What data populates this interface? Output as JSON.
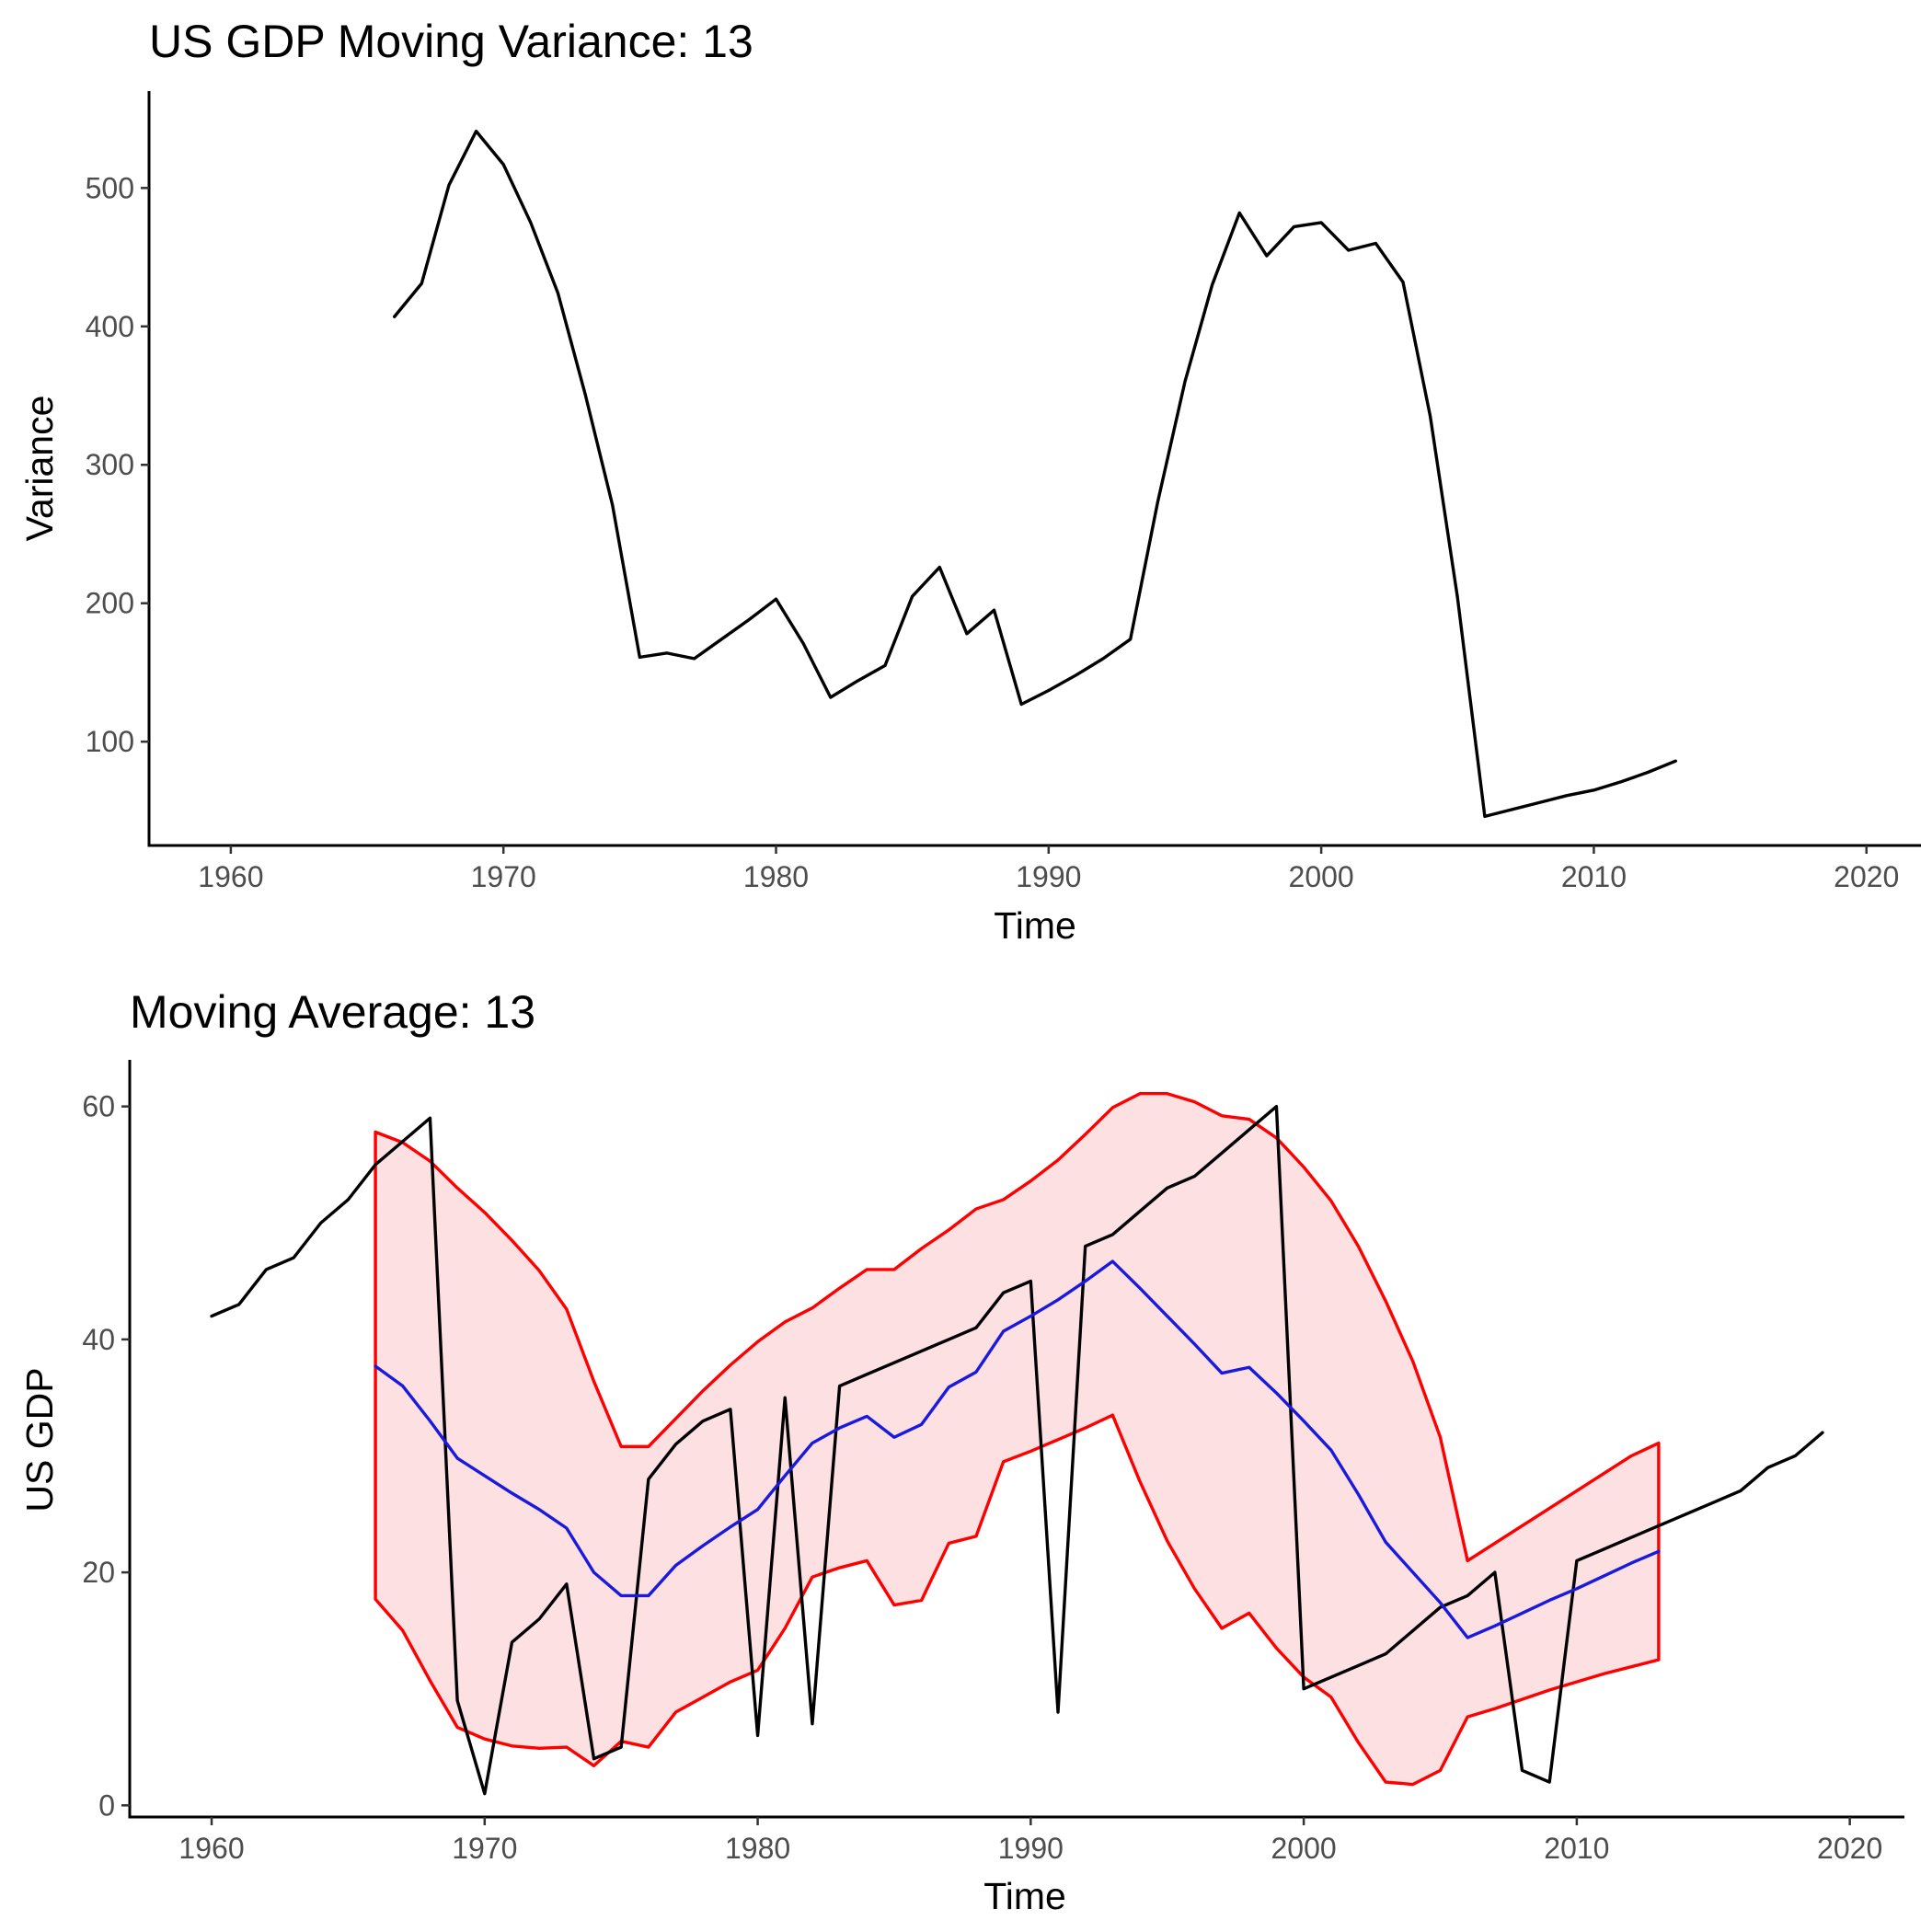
{
  "chart_data": [
    {
      "type": "line",
      "title": "US GDP Moving Variance: 13",
      "xlabel": "Time",
      "ylabel": "Variance",
      "xlim": [
        1957,
        2022
      ],
      "ylim": [
        25,
        570
      ],
      "xticks": [
        1960,
        1970,
        1980,
        1990,
        2000,
        2010,
        2020
      ],
      "yticks": [
        100,
        200,
        300,
        400,
        500
      ],
      "grid": false,
      "series": [
        {
          "color": "#000000",
          "x": [
            1966,
            1967,
            1968,
            1969,
            1970,
            1971,
            1972,
            1973,
            1974,
            1975,
            1976,
            1977,
            1978,
            1979,
            1980,
            1981,
            1982,
            1983,
            1984,
            1985,
            1986,
            1987,
            1988,
            1989,
            1990,
            1991,
            1992,
            1993,
            1994,
            1995,
            1996,
            1997,
            1998,
            1999,
            2000,
            2001,
            2002,
            2003,
            2004,
            2005,
            2006,
            2007,
            2008,
            2009,
            2010,
            2011,
            2012,
            2013
          ],
          "y": [
            407,
            431,
            502,
            541,
            517,
            475,
            424,
            351,
            271,
            161,
            164,
            160,
            174,
            188,
            203,
            171,
            132,
            144,
            155,
            205,
            226,
            178,
            195,
            127,
            137,
            148,
            160,
            174,
            273,
            360,
            430,
            482,
            451,
            472,
            475,
            455,
            460,
            432,
            335,
            204,
            46,
            51,
            56,
            61,
            65,
            71,
            78,
            86
          ]
        }
      ]
    },
    {
      "type": "line",
      "title": "Moving Average: 13",
      "xlabel": "Time",
      "ylabel": "US GDP",
      "xlim": [
        1957,
        2022
      ],
      "ylim": [
        -1,
        64
      ],
      "xticks": [
        1960,
        1970,
        1980,
        1990,
        2000,
        2010,
        2020
      ],
      "yticks": [
        0,
        20,
        40,
        60
      ],
      "grid": false,
      "band": {
        "fill": "#fde0e2",
        "color": "#ff0000",
        "x": [
          1966,
          1967,
          1968,
          1969,
          1970,
          1971,
          1972,
          1973,
          1974,
          1975,
          1976,
          1977,
          1978,
          1979,
          1980,
          1981,
          1982,
          1983,
          1984,
          1985,
          1986,
          1987,
          1988,
          1989,
          1990,
          1991,
          1992,
          1993,
          1994,
          1995,
          1996,
          1997,
          1998,
          1999,
          2000,
          2001,
          2002,
          2003,
          2004,
          2005,
          2006,
          2007,
          2008,
          2009,
          2010,
          2011,
          2012,
          2013
        ],
        "upper": [
          57.8,
          56.9,
          55.3,
          53,
          50.9,
          48.5,
          45.9,
          42.6,
          36.4,
          30.8,
          30.8,
          33.2,
          35.6,
          37.8,
          39.8,
          41.5,
          42.7,
          44.4,
          46,
          46,
          47.8,
          49.4,
          51.2,
          52,
          53.6,
          55.4,
          57.6,
          59.9,
          61.1,
          61.1,
          60.4,
          59.2,
          58.9,
          57.3,
          54.8,
          51.9,
          48,
          43.3,
          38.1,
          31.6,
          21,
          22.5,
          24,
          25.5,
          27,
          28.5,
          30,
          31.1
        ],
        "lower": [
          17.7,
          15,
          10.7,
          6.7,
          5.7,
          5.1,
          4.9,
          5,
          3.4,
          5.5,
          5,
          8,
          9.3,
          10.6,
          11.6,
          15.2,
          19.6,
          20.4,
          21,
          17.2,
          17.6,
          22.5,
          23.1,
          29.5,
          30.4,
          31.4,
          32.4,
          33.5,
          27.8,
          22.7,
          18.6,
          15.2,
          16.5,
          13.5,
          11,
          9.3,
          5.4,
          2,
          1.8,
          3,
          7.6,
          8.3,
          9.1,
          9.9,
          10.6,
          11.3,
          11.9,
          12.5
        ]
      },
      "series": [
        {
          "color": "#000000",
          "x": [
            1960,
            1961,
            1962,
            1963,
            1964,
            1965,
            1966,
            1967,
            1968,
            1969,
            1970,
            1971,
            1972,
            1973,
            1974,
            1975,
            1976,
            1977,
            1978,
            1979,
            1980,
            1981,
            1982,
            1983,
            1984,
            1985,
            1986,
            1987,
            1988,
            1989,
            1990,
            1991,
            1992,
            1993,
            1994,
            1995,
            1996,
            1997,
            1998,
            1999,
            2000,
            2001,
            2002,
            2003,
            2004,
            2005,
            2006,
            2007,
            2008,
            2009,
            2010,
            2011,
            2012,
            2013,
            2014,
            2015,
            2016,
            2017,
            2018,
            2019
          ],
          "y": [
            42,
            43,
            46,
            47,
            50,
            52,
            55,
            57,
            59,
            9,
            1,
            14,
            16,
            19,
            4,
            5,
            28,
            31,
            33,
            34,
            6,
            35,
            7,
            36,
            37,
            38,
            39,
            40,
            41,
            44,
            45,
            8,
            48,
            49,
            51,
            53,
            54,
            56,
            58,
            60,
            10,
            11,
            12,
            13,
            15,
            17,
            18,
            20,
            3,
            2,
            21,
            22,
            23,
            24,
            25,
            26,
            27,
            29,
            30,
            32
          ]
        },
        {
          "color": "#1a1add",
          "x": [
            1966,
            1967,
            1968,
            1969,
            1970,
            1971,
            1972,
            1973,
            1974,
            1975,
            1976,
            1977,
            1978,
            1979,
            1980,
            1981,
            1982,
            1983,
            1984,
            1985,
            1986,
            1987,
            1988,
            1989,
            1990,
            1991,
            1992,
            1993,
            1994,
            1995,
            1996,
            1997,
            1998,
            1999,
            2000,
            2001,
            2002,
            2003,
            2004,
            2005,
            2006,
            2007,
            2008,
            2009,
            2010,
            2011,
            2012,
            2013
          ],
          "y": [
            37.7,
            36,
            33,
            29.8,
            28.3,
            26.8,
            25.4,
            23.8,
            20,
            18,
            18,
            20.6,
            22.3,
            23.9,
            25.4,
            28.3,
            31.1,
            32.4,
            33.4,
            31.6,
            32.7,
            35.9,
            37.2,
            40.7,
            42,
            43.4,
            45,
            46.7,
            44.4,
            42,
            39.6,
            37.1,
            37.6,
            35.4,
            33,
            30.5,
            26.7,
            22.6,
            20,
            17.4,
            14.4,
            15.4,
            16.5,
            17.6,
            18.6,
            19.7,
            20.8,
            21.8
          ]
        }
      ]
    }
  ]
}
